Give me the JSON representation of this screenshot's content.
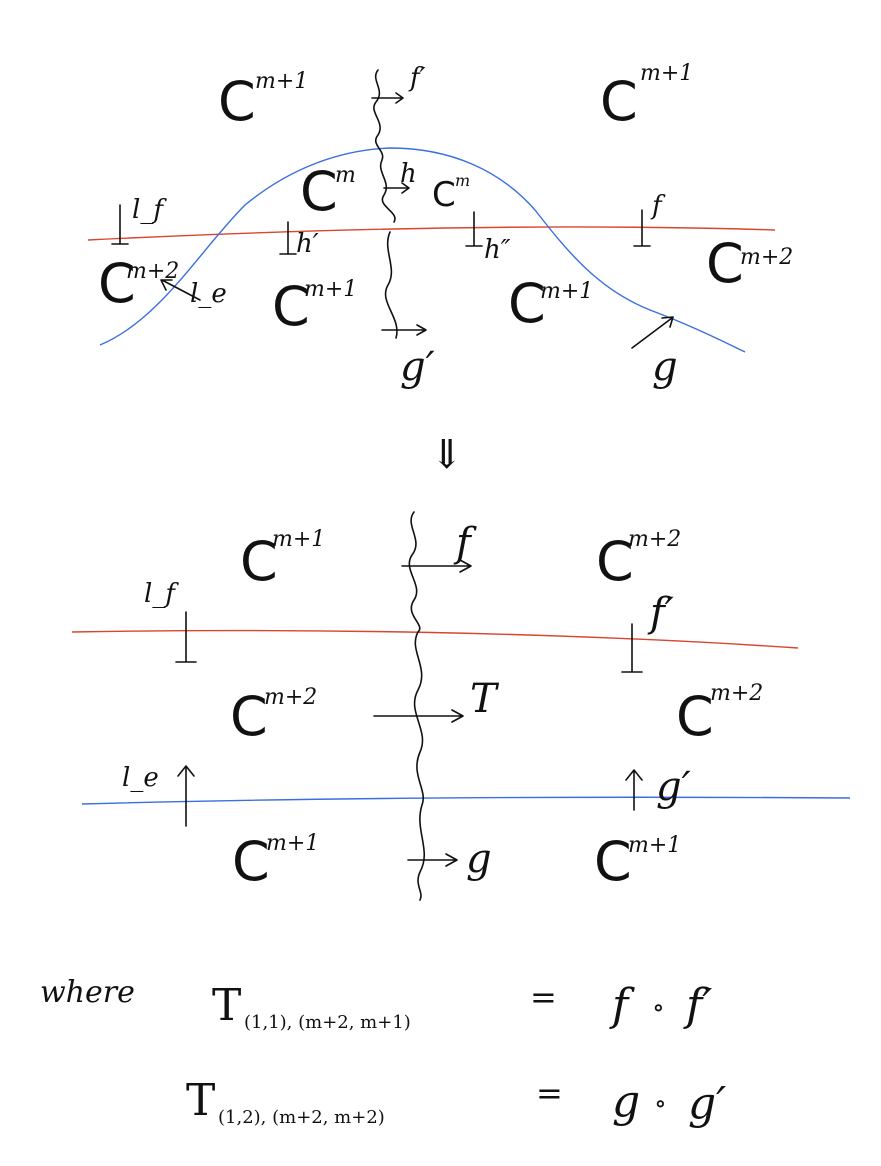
{
  "top_diagram": {
    "regions": {
      "upper_left": {
        "base": "C",
        "exp": "m+1"
      },
      "upper_right": {
        "base": "C",
        "exp": "m+1"
      },
      "inner_left": {
        "base": "C",
        "exp": "m"
      },
      "inner_right": {
        "base": "C",
        "exp": "m"
      },
      "lower_outer_left": {
        "base": "C",
        "exp": "m+2"
      },
      "lower_outer_right": {
        "base": "C",
        "exp": "m+2"
      },
      "lower_inner_left": {
        "base": "C",
        "exp": "m+1"
      },
      "lower_inner_right": {
        "base": "C",
        "exp": "m+1"
      }
    },
    "labels": {
      "f_prime": "f′",
      "h": "h",
      "l_f": "l_f",
      "h_prime": "h′",
      "h_double_prime": "h″",
      "f_right": "f",
      "l_e": "l_e",
      "g_prime": "g′",
      "g": "g"
    }
  },
  "equivalence_symbol": "⇓",
  "bottom_diagram": {
    "regions": {
      "top_left": {
        "base": "C",
        "exp": "m+1"
      },
      "top_right": {
        "base": "C",
        "exp": "m+2"
      },
      "mid_left": {
        "base": "C",
        "exp": "m+2"
      },
      "mid_right": {
        "base": "C",
        "exp": "m+2"
      },
      "bottom_left": {
        "base": "C",
        "exp": "m+1"
      },
      "bottom_right": {
        "base": "C",
        "exp": "m+1"
      }
    },
    "labels": {
      "f": "f",
      "l_f": "l_f",
      "f_prime": "f′",
      "T": "T",
      "l_e": "l_e",
      "g_prime": "g′",
      "g": "g"
    }
  },
  "equations": {
    "where_word": "where",
    "eq1": {
      "symbol": "T",
      "subscript": "(1,1), (m+2, m+1)",
      "equals": "=",
      "rhs_left": "f",
      "dot": "∘",
      "rhs_right": "f′"
    },
    "eq2": {
      "symbol": "T",
      "subscript": "(1,2), (m+2, m+2)",
      "equals": "=",
      "rhs_left": "g",
      "dot": "∘",
      "rhs_right": "g′"
    }
  },
  "colors": {
    "red_line": "#d9452f",
    "blue_line": "#3a6fe0",
    "ink": "#111111"
  }
}
